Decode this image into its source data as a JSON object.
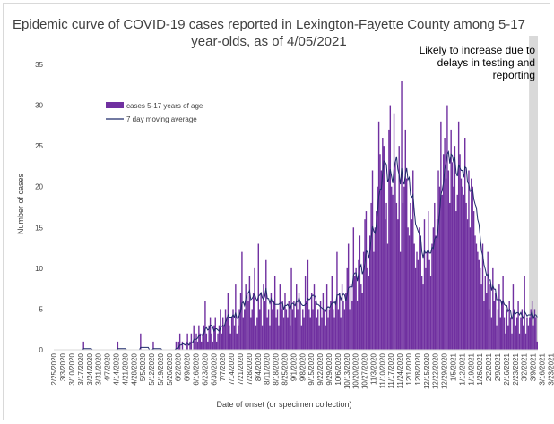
{
  "chart_data": {
    "type": "bar",
    "title_line1": "Epidemic curve of COVID-19 cases reported in Lexington-Fayette County among 5-17",
    "title_line2": "year-olds, as of 4/05/2021",
    "xlabel": "Date of onset (or specimen collection)",
    "ylabel": "Number of cases",
    "ylim": [
      0,
      35
    ],
    "yticks": [
      0,
      5,
      10,
      15,
      20,
      25,
      30,
      35
    ],
    "grid": false,
    "legend_position": "upper-left",
    "start_date": "2020-02-25",
    "x_tick_labels": [
      "2/25/2020",
      "3/3/2020",
      "3/10/2020",
      "3/17/2020",
      "3/24/2020",
      "3/31/2020",
      "4/7/2020",
      "4/14/2020",
      "4/21/2020",
      "4/28/2020",
      "5/5/2020",
      "5/12/2020",
      "5/19/2020",
      "5/26/2020",
      "6/2/2020",
      "6/9/2020",
      "6/16/2020",
      "6/23/2020",
      "6/30/2020",
      "7/7/2020",
      "7/14/2020",
      "7/21/2020",
      "7/28/2020",
      "8/4/2020",
      "8/11/2020",
      "8/18/2020",
      "8/25/2020",
      "9/1/2020",
      "9/8/2020",
      "9/15/2020",
      "9/22/2020",
      "9/29/2020",
      "10/6/2020",
      "10/13/2020",
      "10/20/2020",
      "10/27/2020",
      "11/3/2020",
      "11/10/2020",
      "11/17/2020",
      "11/24/2020",
      "12/1/2020",
      "12/8/2020",
      "12/15/2020",
      "12/22/2020",
      "12/29/2020",
      "1/5/2021",
      "1/12/2021",
      "1/19/2021",
      "1/26/2021",
      "2/2/2021",
      "2/9/2021",
      "2/16/2021",
      "2/23/2021",
      "3/2/2021",
      "3/9/2021",
      "3/16/2021",
      "3/23/2021",
      "3/30/2021"
    ],
    "series": [
      {
        "name": "cases 5-17 years of age",
        "kind": "bar",
        "color": "#7030a0",
        "values": [
          0,
          0,
          0,
          0,
          0,
          0,
          0,
          0,
          0,
          0,
          0,
          0,
          0,
          0,
          0,
          0,
          0,
          0,
          0,
          0,
          0,
          0,
          0,
          1,
          0,
          0,
          0,
          0,
          0,
          0,
          0,
          0,
          0,
          0,
          0,
          0,
          0,
          0,
          0,
          0,
          0,
          0,
          0,
          0,
          0,
          0,
          0,
          0,
          0,
          0,
          1,
          0,
          0,
          0,
          0,
          0,
          0,
          0,
          0,
          0,
          0,
          0,
          0,
          0,
          0,
          0,
          0,
          0,
          2,
          0,
          0,
          0,
          0,
          0,
          0,
          0,
          0,
          0,
          1,
          0,
          0,
          0,
          0,
          0,
          0,
          0,
          0,
          0,
          0,
          0,
          0,
          0,
          0,
          0,
          0,
          0,
          1,
          0,
          1,
          2,
          0,
          1,
          0,
          0,
          1,
          2,
          0,
          1,
          2,
          0,
          3,
          1,
          2,
          1,
          3,
          2,
          1,
          2,
          3,
          6,
          2,
          1,
          3,
          4,
          2,
          1,
          3,
          4,
          1,
          2,
          3,
          5,
          2,
          4,
          3,
          5,
          4,
          7,
          3,
          2,
          4,
          5,
          3,
          8,
          2,
          3,
          5,
          7,
          12,
          4,
          5,
          8,
          7,
          6,
          9,
          4,
          5,
          7,
          10,
          3,
          4,
          13,
          5,
          7,
          3,
          8,
          6,
          11,
          4,
          5,
          3,
          7,
          5,
          6,
          9,
          4,
          5,
          3,
          8,
          5,
          6,
          4,
          7,
          5,
          4,
          6,
          3,
          10,
          5,
          6,
          4,
          8,
          5,
          7,
          6,
          3,
          5,
          4,
          9,
          6,
          11,
          5,
          4,
          7,
          5,
          8,
          6,
          4,
          5,
          3,
          6,
          4,
          7,
          5,
          3,
          8,
          4,
          5,
          6,
          9,
          5,
          4,
          6,
          12,
          5,
          7,
          4,
          8,
          6,
          5,
          7,
          10,
          13,
          5,
          8,
          6,
          15,
          9,
          10,
          6,
          11,
          14,
          8,
          7,
          12,
          16,
          17,
          10,
          9,
          14,
          18,
          22,
          12,
          15,
          17,
          20,
          28,
          24,
          22,
          26,
          25,
          16,
          18,
          13,
          27,
          30,
          20,
          19,
          29,
          23,
          18,
          16,
          25,
          12,
          33,
          18,
          20,
          27,
          21,
          15,
          14,
          18,
          16,
          22,
          13,
          10,
          12,
          11,
          15,
          14,
          9,
          8,
          16,
          10,
          12,
          17,
          11,
          9,
          13,
          15,
          18,
          14,
          16,
          22,
          20,
          28,
          19,
          24,
          26,
          21,
          30,
          22,
          18,
          27,
          23,
          20,
          25,
          17,
          19,
          28,
          24,
          21,
          20,
          19,
          26,
          18,
          16,
          22,
          15,
          21,
          20,
          17,
          14,
          13,
          12,
          11,
          10,
          8,
          13,
          6,
          9,
          7,
          12,
          5,
          8,
          4,
          10,
          6,
          7,
          3,
          5,
          8,
          4,
          6,
          9,
          4,
          2,
          5,
          3,
          6,
          4,
          2,
          8,
          5,
          3,
          4,
          6,
          2,
          4,
          5,
          3,
          9,
          2,
          4,
          3,
          4,
          5,
          6,
          3,
          5,
          4,
          1
        ]
      },
      {
        "name": "7 day moving average",
        "kind": "line",
        "color": "#1f2a6b"
      }
    ],
    "annotation": {
      "lines": [
        "Likely to increase due to",
        "delays in testing and",
        "reporting"
      ],
      "shade_days": 7,
      "shade_color": "#d9d9d9"
    }
  }
}
